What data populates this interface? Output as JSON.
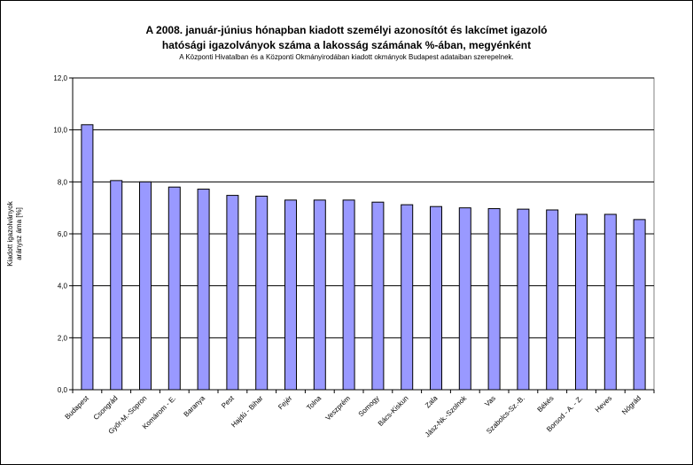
{
  "chart_data": {
    "type": "bar",
    "title_line1": "A 2008. január-június hónapban kiadott személyi azonosítót és lakcímet igazoló",
    "title_line2": "hatósági igazolványok száma a lakosság  számának %-ában, megyénként",
    "subtitle": "A Központi Hivatalban és  a Központi Okmányirodában kiadott okmányok Budapest adataiban szerepelnek.",
    "ylabel_line1": "Kiadott igazolványok",
    "ylabel_line2": "aránysz áma [%]",
    "xlabel": "",
    "ylim": [
      0,
      12
    ],
    "yticks": [
      "0,0",
      "2,0",
      "4,0",
      "6,0",
      "8,0",
      "10,0",
      "12,0"
    ],
    "grid": true,
    "legend": "none",
    "categories": [
      "Budapest",
      "Csongrád",
      "Győr-M.-Sopron",
      "Komárom - E.",
      "Baranya",
      "Pest",
      "Hajdú - Bihar",
      "Fejér",
      "Tolna",
      "Veszprém",
      "Somogy",
      "Bács-Kiskun",
      "Zala",
      "Jász-Nk.-Szolnok",
      "Vas",
      "Szabolcs-Sz.-B.",
      "Békés",
      "Borsod - A. - Z.",
      "Heves",
      "Nógrád"
    ],
    "values": [
      10.2,
      8.05,
      8.0,
      7.8,
      7.72,
      7.48,
      7.45,
      7.3,
      7.3,
      7.3,
      7.22,
      7.12,
      7.05,
      7.0,
      6.97,
      6.95,
      6.92,
      6.75,
      6.75,
      6.55
    ],
    "colors": {
      "bar_fill": "#9999ff",
      "bar_stroke": "#000000",
      "plot_background": "#ffffff",
      "gridline": "#000000",
      "page_background": "#c0c0c0"
    }
  }
}
